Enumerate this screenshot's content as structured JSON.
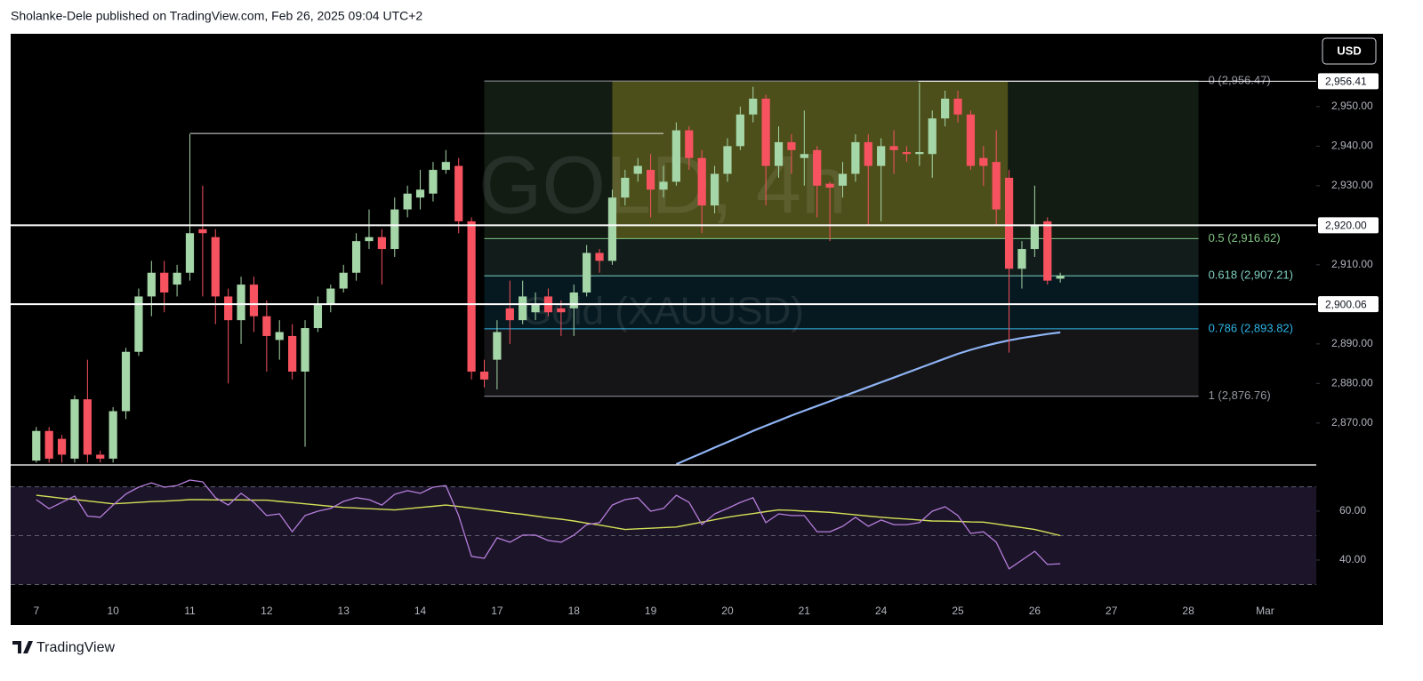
{
  "header": "Sholanke-Dele published on TradingView.com, Feb 26, 2025 09:04 UTC+2",
  "footer": "TradingView",
  "chart_data": [
    {
      "type": "candlestick",
      "title": "GOLD, 4h",
      "subtitle": "Gold (XAUUSD)",
      "unit": "USD",
      "up_color": "#a5d6a7",
      "down_color": "#f7525f",
      "open": [
        2860.5,
        2868,
        2866,
        2861,
        2876,
        2862,
        2861,
        2873,
        2888,
        2902,
        2908,
        2905,
        2908,
        2919,
        2917,
        2902,
        2896,
        2905,
        2897,
        2891,
        2892,
        2883,
        2894,
        2900,
        2904,
        2908,
        2916,
        2917,
        2914,
        2924,
        2927,
        2928,
        2934,
        2935,
        2921,
        2883,
        2886,
        2899,
        2896,
        2898,
        2902,
        2899,
        2899,
        2903,
        2913,
        2911,
        2927,
        2933,
        2934,
        2929,
        2931,
        2944,
        2937,
        2925,
        2933,
        2940,
        2948,
        2952,
        2935,
        2941,
        2937,
        2939,
        2930.5,
        2930,
        2933,
        2941,
        2935,
        2940,
        2938.5,
        2938,
        2938,
        2947,
        2952,
        2948,
        2937,
        2936,
        2932,
        2909,
        2914,
        2921,
        2906.5
      ],
      "high": [
        2869,
        2869,
        2867,
        2877,
        2886,
        2863,
        2874,
        2889,
        2904,
        2911,
        2911,
        2910,
        2943,
        2930,
        2919,
        2904,
        2907,
        2907,
        2901,
        2896,
        2895,
        2896,
        2902,
        2905,
        2910,
        2918,
        2924,
        2919,
        2927,
        2930,
        2934,
        2936,
        2939,
        2937,
        2922,
        2886,
        2896,
        2906,
        2906,
        2903,
        2904,
        2901,
        2905,
        2915,
        2914,
        2929,
        2934,
        2937,
        2938,
        2935,
        2946,
        2945,
        2939,
        2935,
        2942,
        2950,
        2955,
        2953,
        2945,
        2943,
        2949,
        2940,
        2931,
        2936,
        2943,
        2943,
        2942,
        2944,
        2940,
        2956,
        2949,
        2954,
        2954,
        2949,
        2940,
        2944,
        2934,
        2916,
        2930,
        2922,
        2908
      ],
      "low": [
        2860,
        2860,
        2860,
        2860,
        2860,
        2860,
        2860,
        2871,
        2887,
        2897,
        2898,
        2902,
        2906,
        2902,
        2895,
        2880,
        2890,
        2893,
        2883,
        2886,
        2881,
        2864,
        2893,
        2898,
        2903,
        2906,
        2914,
        2905,
        2912,
        2922,
        2924,
        2926,
        2933,
        2918,
        2881,
        2879,
        2878.5,
        2890,
        2895,
        2896,
        2897,
        2892,
        2892,
        2902,
        2908,
        2910,
        2925,
        2931,
        2922,
        2927,
        2930,
        2934,
        2918,
        2923,
        2931,
        2939,
        2946,
        2925,
        2932,
        2933,
        2930,
        2922,
        2916,
        2927,
        2931,
        2920,
        2921,
        2933,
        2936,
        2935,
        2932,
        2945,
        2946,
        2934,
        2930,
        2920,
        2887.8,
        2904,
        2912,
        2905,
        2905.5
      ],
      "close": [
        2868,
        2861,
        2862,
        2876,
        2862,
        2861,
        2873,
        2888,
        2902,
        2908,
        2903,
        2908,
        2918,
        2918,
        2902,
        2896,
        2905,
        2897,
        2892,
        2893,
        2883,
        2894,
        2900,
        2904,
        2908,
        2916,
        2917,
        2914,
        2924,
        2928,
        2929,
        2934,
        2936,
        2921,
        2883,
        2881,
        2893,
        2896,
        2902,
        2900,
        2898,
        2898,
        2903,
        2913,
        2911,
        2927,
        2932,
        2935,
        2929,
        2931,
        2944,
        2937,
        2925,
        2933,
        2940,
        2948,
        2952,
        2935,
        2941,
        2939,
        2938,
        2930,
        2929.5,
        2933,
        2941,
        2935,
        2940,
        2939,
        2938,
        2938.5,
        2947,
        2952,
        2948,
        2935,
        2935,
        2924,
        2909,
        2914,
        2920,
        2906,
        2907.2
      ],
      "moving_average": {
        "color": "#8fb4f5",
        "values": [
          null,
          null,
          null,
          null,
          null,
          null,
          null,
          null,
          null,
          null,
          null,
          null,
          null,
          null,
          null,
          null,
          null,
          null,
          null,
          null,
          null,
          null,
          null,
          null,
          null,
          null,
          null,
          null,
          null,
          null,
          null,
          null,
          null,
          null,
          null,
          null,
          null,
          null,
          null,
          null,
          null,
          null,
          null,
          null,
          null,
          null,
          null,
          null,
          null,
          null,
          2859.6,
          2861,
          2862.4,
          2863.8,
          2865.2,
          2866.6,
          2868.0,
          2869.3,
          2870.6,
          2871.9,
          2873.1,
          2874.3,
          2875.5,
          2876.7,
          2877.9,
          2879.1,
          2880.3,
          2881.5,
          2882.7,
          2883.9,
          2885.1,
          2886.3,
          2887.5,
          2888.5,
          2889.4,
          2890.2,
          2890.9,
          2891.5,
          2892.0,
          2892.5,
          2892.9
        ]
      },
      "xlim": [
        -2,
        100
      ],
      "xticks": [
        {
          "value": 0,
          "label": "7"
        },
        {
          "value": 6,
          "label": "10"
        },
        {
          "value": 12,
          "label": "11"
        },
        {
          "value": 18,
          "label": "12"
        },
        {
          "value": 24,
          "label": "13"
        },
        {
          "value": 30,
          "label": "14"
        },
        {
          "value": 36,
          "label": "17"
        },
        {
          "value": 42,
          "label": "18"
        },
        {
          "value": 48,
          "label": "19"
        },
        {
          "value": 54,
          "label": "20"
        },
        {
          "value": 60,
          "label": "21"
        },
        {
          "value": 66,
          "label": "24"
        },
        {
          "value": 72,
          "label": "25"
        },
        {
          "value": 78,
          "label": "26"
        },
        {
          "value": 84,
          "label": "27"
        },
        {
          "value": 90,
          "label": "28"
        },
        {
          "value": 96,
          "label": "Mar"
        }
      ],
      "ylim": [
        2859.4,
        2968.4
      ],
      "yticks": [
        {
          "value": 2870,
          "label": "2,870.00"
        },
        {
          "value": 2880,
          "label": "2,880.00"
        },
        {
          "value": 2890,
          "label": "2,890.00"
        },
        {
          "value": 2900,
          "label": "2,900.00"
        },
        {
          "value": 2910,
          "label": "2,910.00"
        },
        {
          "value": 2920,
          "label": "2,920.00"
        },
        {
          "value": 2930,
          "label": "2,930.00"
        },
        {
          "value": 2940,
          "label": "2,940.00"
        },
        {
          "value": 2950,
          "label": "2,950.00"
        }
      ],
      "price_lines": [
        {
          "value": 2956.41,
          "label": "2,956.41",
          "from": 68.9
        },
        {
          "value": 2920,
          "label": "2,920.00"
        },
        {
          "value": 2900.06,
          "label": "2,900.06"
        }
      ],
      "trend_line": {
        "value": 2943.2,
        "from": 12,
        "to": 49
      },
      "highlight_box": {
        "from": 45,
        "to": 75.9,
        "top": 2956.47,
        "bottom": 2916.62,
        "color": "#6b6b1f"
      },
      "fibonacci": {
        "from": 35,
        "to": 90.8,
        "levels": [
          {
            "value": 2956.47,
            "label": "0 (2,956.47)",
            "color": "#9598a1"
          },
          {
            "value": 2916.62,
            "label": "0.5 (2,916.62)",
            "color": "#81c784"
          },
          {
            "value": 2907.21,
            "label": "0.618 (2,907.21)",
            "color": "#7fcfbf"
          },
          {
            "value": 2893.82,
            "label": "0.786 (2,893.82)",
            "color": "#2fb4e6"
          },
          {
            "value": 2876.76,
            "label": "1 (2,876.76)",
            "color": "#9598a1"
          }
        ]
      }
    },
    {
      "type": "line",
      "color": "#b57edc",
      "values": [
        64.7,
        61,
        63.6,
        66.2,
        58,
        57.5,
        62.5,
        67,
        69.8,
        71.6,
        69.8,
        70.5,
        72.7,
        72,
        65.5,
        62.5,
        67.3,
        63.6,
        58.2,
        58.9,
        51.6,
        58.2,
        60,
        61.1,
        64,
        65.5,
        64.7,
        62.5,
        66.9,
        68.4,
        67.3,
        69.8,
        70.5,
        58.2,
        41.5,
        40.7,
        49.1,
        47.3,
        50.2,
        50.2,
        48,
        47.3,
        50.2,
        54.5,
        55.3,
        62.5,
        64.7,
        65.5,
        60,
        61.1,
        66.5,
        63.6,
        54.5,
        58.9,
        61.1,
        63.6,
        65.5,
        55.3,
        58.9,
        58.2,
        58.2,
        51.6,
        51.6,
        53.8,
        57.5,
        53.8,
        56.4,
        54.5,
        54.5,
        55.3,
        60,
        61.8,
        58.2,
        50.9,
        51.6,
        47.3,
        36.4,
        40,
        43.6,
        38.2,
        38.5
      ],
      "signal": {
        "color": "#d4e157",
        "values": [
          66.5,
          65.9,
          65.3,
          64.8,
          64.2,
          63.6,
          63,
          63.3,
          63.6,
          63.9,
          64.1,
          64.4,
          64.7,
          64.7,
          64.6,
          64.6,
          64.6,
          64.5,
          64.5,
          64,
          63.5,
          63,
          62.5,
          62,
          61.5,
          61.3,
          61,
          60.8,
          60.5,
          61,
          61.5,
          62,
          62.5,
          61.9,
          61.3,
          60.6,
          60,
          59.3,
          58.7,
          58,
          57.3,
          56.7,
          56,
          55.1,
          54.3,
          53.4,
          52.5,
          52.8,
          53,
          53.3,
          53.5,
          54.5,
          55.5,
          56.5,
          57.5,
          58.3,
          59,
          59.8,
          60.5,
          60.3,
          60,
          59.8,
          59.5,
          59,
          58.5,
          58,
          57.5,
          57.1,
          56.8,
          56.4,
          56,
          55.9,
          55.8,
          55.6,
          55.5,
          54.8,
          54,
          53.3,
          52.5,
          51.3,
          50
        ]
      },
      "ylim": [
        21.8,
        78.9
      ],
      "yticks": [
        {
          "value": 40,
          "label": "40.00"
        },
        {
          "value": 60,
          "label": "60.00"
        }
      ],
      "levels": [
        70,
        50,
        30
      ],
      "band_color": "#1c1428"
    }
  ]
}
